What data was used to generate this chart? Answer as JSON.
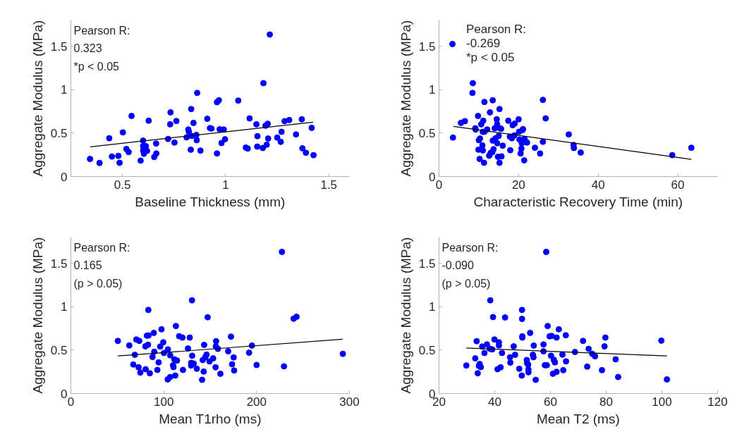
{
  "chart_data": [
    {
      "type": "scatter",
      "xlabel": "Baseline Thickness (mm)",
      "ylabel": "Aggregate Modulus (MPa)",
      "xlim": [
        0.25,
        1.6
      ],
      "xticks": [
        0.5,
        1,
        1.5
      ],
      "ylim": [
        0,
        1.8
      ],
      "yticks": [
        0,
        0.5,
        1,
        1.5
      ],
      "grid": false,
      "legend": false,
      "annotations": [
        "Pearson R:\n0.323\n*p < 0.05"
      ],
      "series": [
        {
          "color": "#0000ff",
          "marker": "circle",
          "x": [
            0.343,
            0.389,
            0.436,
            0.449,
            0.48,
            0.486,
            0.502,
            0.519,
            0.53,
            0.544,
            0.588,
            0.6,
            0.6,
            0.6,
            0.604,
            0.613,
            0.619,
            0.627,
            0.654,
            0.663,
            0.664,
            0.721,
            0.731,
            0.733,
            0.752,
            0.761,
            0.811,
            0.819,
            0.822,
            0.831,
            0.833,
            0.836,
            0.844,
            0.858,
            0.86,
            0.862,
            0.878,
            0.911,
            0.924,
            0.931,
            0.958,
            0.958,
            0.967,
            0.971,
            0.98,
            0.991,
            0.997,
            1.061,
            1.098,
            1.107,
            1.116,
            1.149,
            1.153,
            1.154,
            1.18,
            1.183,
            1.193,
            1.199,
            1.204,
            1.206,
            1.214,
            1.25,
            1.267,
            1.271,
            1.286,
            1.308,
            1.341,
            1.369,
            1.372,
            1.389,
            1.417,
            1.426
          ],
          "values": [
            0.202,
            0.156,
            0.44,
            0.23,
            0.238,
            0.158,
            0.508,
            0.317,
            0.281,
            0.697,
            0.183,
            0.413,
            0.35,
            0.3,
            0.262,
            0.35,
            0.295,
            0.642,
            0.224,
            0.38,
            0.265,
            0.432,
            0.601,
            0.738,
            0.391,
            0.639,
            0.451,
            0.541,
            0.514,
            0.309,
            0.776,
            0.467,
            0.617,
            0.478,
            0.418,
            0.962,
            0.298,
            0.664,
            0.557,
            0.552,
            0.265,
            0.855,
            0.877,
            0.544,
            0.385,
            0.541,
            0.429,
            0.874,
            0.333,
            0.322,
            0.669,
            0.601,
            0.344,
            0.464,
            0.328,
            1.074,
            0.585,
            0.366,
            0.607,
            0.437,
            1.634,
            0.448,
            0.399,
            0.514,
            0.637,
            0.65,
            0.484,
            0.658,
            0.325,
            0.273,
            0.56,
            0.246
          ]
        },
        {
          "type": "line",
          "marker": "none",
          "color": "#000000",
          "x": [
            0.344,
            1.424
          ],
          "values": [
            0.342,
            0.626
          ]
        }
      ]
    },
    {
      "type": "scatter",
      "xlabel": "Characteristic Recovery Time (min)",
      "ylabel": "Aggregate Modulus (MPa)",
      "xlim": [
        0,
        70
      ],
      "xticks": [
        0,
        20,
        40,
        60
      ],
      "ylim": [
        0,
        1.8
      ],
      "yticks": [
        0,
        0.5,
        1,
        1.5
      ],
      "grid": false,
      "legend": "top left",
      "series": [
        {
          "name": "Pearson R:\n-0.269\n*p < 0.05",
          "color": "#0000ff",
          "marker": "circle",
          "x": [
            3.5,
            5.5,
            6.5,
            8.5,
            8.4,
            9.1,
            9.2,
            9.8,
            10.0,
            10.3,
            9.9,
            10.2,
            10.6,
            10.9,
            11.0,
            11.1,
            11.0,
            11.3,
            11.4,
            11.4,
            12.1,
            12.6,
            12.8,
            13.0,
            13.4,
            13.5,
            13.5,
            13.7,
            14.0,
            14.2,
            14.5,
            14.6,
            14.6,
            14.8,
            15.0,
            15.2,
            15.2,
            15.3,
            15.6,
            15.7,
            16.0,
            17.4,
            17.8,
            17.9,
            18.3,
            18.5,
            19.0,
            18.9,
            20.0,
            20.1,
            20.2,
            20.5,
            20.7,
            20.8,
            21.0,
            21.1,
            21.4,
            21.5,
            22.1,
            24.1,
            25.4,
            26.1,
            26.1,
            26.8,
            32.6,
            33.8,
            33.9,
            35.6,
            58.6,
            63.4
          ],
          "values": [
            0.448,
            0.617,
            0.637,
            1.074,
            0.962,
            0.555,
            0.541,
            0.697,
            0.418,
            0.437,
            0.309,
            0.202,
            0.601,
            0.358,
            0.301,
            0.642,
            0.514,
            0.158,
            0.858,
            0.514,
            0.541,
            0.24,
            0.738,
            0.273,
            0.281,
            0.413,
            0.877,
            0.314,
            0.555,
            0.44,
            0.658,
            0.601,
            0.383,
            0.227,
            0.467,
            0.776,
            0.158,
            0.555,
            0.549,
            0.232,
            0.355,
            0.642,
            0.459,
            0.303,
            0.44,
            0.59,
            0.609,
            0.473,
            0.658,
            0.514,
            0.426,
            0.265,
            0.322,
            0.383,
            0.536,
            0.546,
            0.186,
            0.432,
            0.391,
            0.331,
            0.265,
            0.399,
            0.882,
            0.669,
            0.484,
            0.363,
            0.328,
            0.276,
            0.246,
            0.331
          ]
        },
        {
          "type": "line",
          "marker": "none",
          "color": "#000000",
          "x": [
            3.6,
            63.4
          ],
          "values": [
            0.577,
            0.197
          ]
        }
      ]
    },
    {
      "type": "scatter",
      "xlabel": "Mean T1rho (ms)",
      "ylabel": "Aggregate Modulus (MPa)",
      "xlim": [
        0,
        300
      ],
      "xticks": [
        0,
        100,
        200,
        300
      ],
      "ylim": [
        0,
        1.8
      ],
      "yticks": [
        0,
        0.5,
        1,
        1.5
      ],
      "grid": false,
      "legend": false,
      "annotations": [
        "Pearson R:\n0.165\n(p > 0.05)"
      ],
      "series": [
        {
          "color": "#0000ff",
          "marker": "circle",
          "x": [
            50.6,
            62.9,
            68.9,
            67.2,
            70.5,
            73.6,
            72.9,
            74.8,
            80.5,
            80.2,
            81.9,
            83.1,
            83.6,
            83.4,
            85.0,
            87.9,
            89.3,
            89.8,
            93.1,
            94.5,
            96.2,
            97.6,
            99.5,
            100.2,
            104.5,
            104.3,
            106.9,
            106.9,
            110.0,
            110.5,
            111.4,
            112.4,
            113.1,
            114.3,
            116.6,
            120.2,
            120.7,
            126.1,
            128.0,
            130.4,
            130.6,
            129.5,
            129.5,
            132.3,
            135.6,
            141.3,
            142.0,
            143.0,
            143.5,
            144.7,
            146.1,
            147.3,
            149.2,
            153.2,
            155.8,
            156.1,
            156.4,
            158.4,
            161.0,
            169.4,
            172.4,
            173.6,
            175.3,
            175.8,
            191.9,
            195.0,
            200.0,
            227.3,
            229.5,
            239.9,
            243.0,
            292.9
          ],
          "values": [
            0.606,
            0.554,
            0.446,
            0.334,
            0.622,
            0.606,
            0.302,
            0.242,
            0.28,
            0.543,
            0.666,
            0.562,
            0.668,
            0.962,
            0.234,
            0.421,
            0.698,
            0.481,
            0.272,
            0.359,
            0.541,
            0.739,
            0.59,
            0.467,
            0.508,
            0.163,
            0.44,
            0.19,
            0.326,
            0.304,
            0.394,
            0.207,
            0.777,
            0.38,
            0.66,
            0.644,
            0.272,
            0.519,
            0.644,
            1.073,
            0.435,
            0.353,
            0.323,
            0.345,
            0.285,
            0.158,
            0.386,
            0.253,
            0.56,
            0.418,
            0.448,
            0.878,
            0.37,
            0.405,
            0.302,
            0.543,
            0.603,
            0.514,
            0.228,
            0.486,
            0.655,
            0.337,
            0.416,
            0.266,
            0.47,
            0.552,
            0.329,
            1.63,
            0.313,
            0.861,
            0.883,
            0.457
          ]
        },
        {
          "type": "line",
          "marker": "none",
          "color": "#000000",
          "x": [
            50.6,
            292.6
          ],
          "values": [
            0.432,
            0.625
          ]
        }
      ]
    },
    {
      "type": "scatter",
      "xlabel": "Mean T2 (ms)",
      "ylabel": "Aggregate Modulus (MPa)",
      "xlim": [
        20,
        120
      ],
      "xticks": [
        20,
        40,
        60,
        80,
        100,
        120
      ],
      "ylim": [
        0,
        1.8
      ],
      "yticks": [
        0,
        0.5,
        1,
        1.5
      ],
      "grid": false,
      "legend": false,
      "annotations": [
        "Pearson R:\n-0.090\n(p > 0.05)"
      ],
      "series": [
        {
          "color": "#0000ff",
          "marker": "circle",
          "x": [
            29.8,
            33.0,
            33.5,
            33.9,
            34.3,
            34.6,
            35.0,
            35.5,
            36.3,
            37.2,
            38.2,
            38.4,
            39.1,
            39.4,
            39.9,
            41.0,
            41.5,
            41.5,
            42.1,
            42.6,
            43.7,
            45.5,
            45.6,
            46.8,
            47.3,
            48.8,
            49.7,
            49.8,
            49.8,
            49.9,
            49.9,
            51.5,
            51.6,
            52.0,
            52.1,
            52.1,
            52.7,
            53.7,
            53.9,
            54.0,
            54.7,
            57.5,
            57.5,
            58.0,
            58.5,
            58.7,
            59.0,
            59.7,
            60.2,
            60.4,
            60.9,
            61.2,
            61.6,
            62.2,
            62.2,
            63.0,
            64.3,
            64.6,
            65.5,
            65.6,
            68.8,
            71.7,
            73.2,
            73.7,
            75.0,
            76.0,
            78.5,
            79.4,
            79.7,
            83.4,
            84.3,
            99.8,
            101.8
          ],
          "values": [
            0.323,
            0.405,
            0.603,
            0.234,
            0.318,
            0.34,
            0.304,
            0.541,
            0.467,
            0.565,
            0.516,
            1.073,
            0.508,
            0.88,
            0.622,
            0.28,
            0.59,
            0.554,
            0.302,
            0.467,
            0.875,
            0.418,
            0.356,
            0.543,
            0.446,
            0.285,
            0.207,
            0.962,
            0.859,
            0.658,
            0.644,
            0.386,
            0.351,
            0.332,
            0.277,
            0.245,
            0.698,
            0.446,
            0.418,
            0.552,
            0.158,
            0.565,
            0.486,
            0.326,
            1.63,
            0.326,
            0.777,
            0.658,
            0.435,
            0.663,
            0.228,
            0.389,
            0.359,
            0.25,
            0.644,
            0.739,
            0.448,
            0.269,
            0.671,
            0.37,
            0.478,
            0.606,
            0.31,
            0.514,
            0.457,
            0.429,
            0.269,
            0.543,
            0.644,
            0.394,
            0.19,
            0.609,
            0.163
          ]
        },
        {
          "type": "line",
          "marker": "none",
          "color": "#000000",
          "x": [
            29.8,
            101.8
          ],
          "values": [
            0.524,
            0.432
          ]
        }
      ]
    }
  ]
}
